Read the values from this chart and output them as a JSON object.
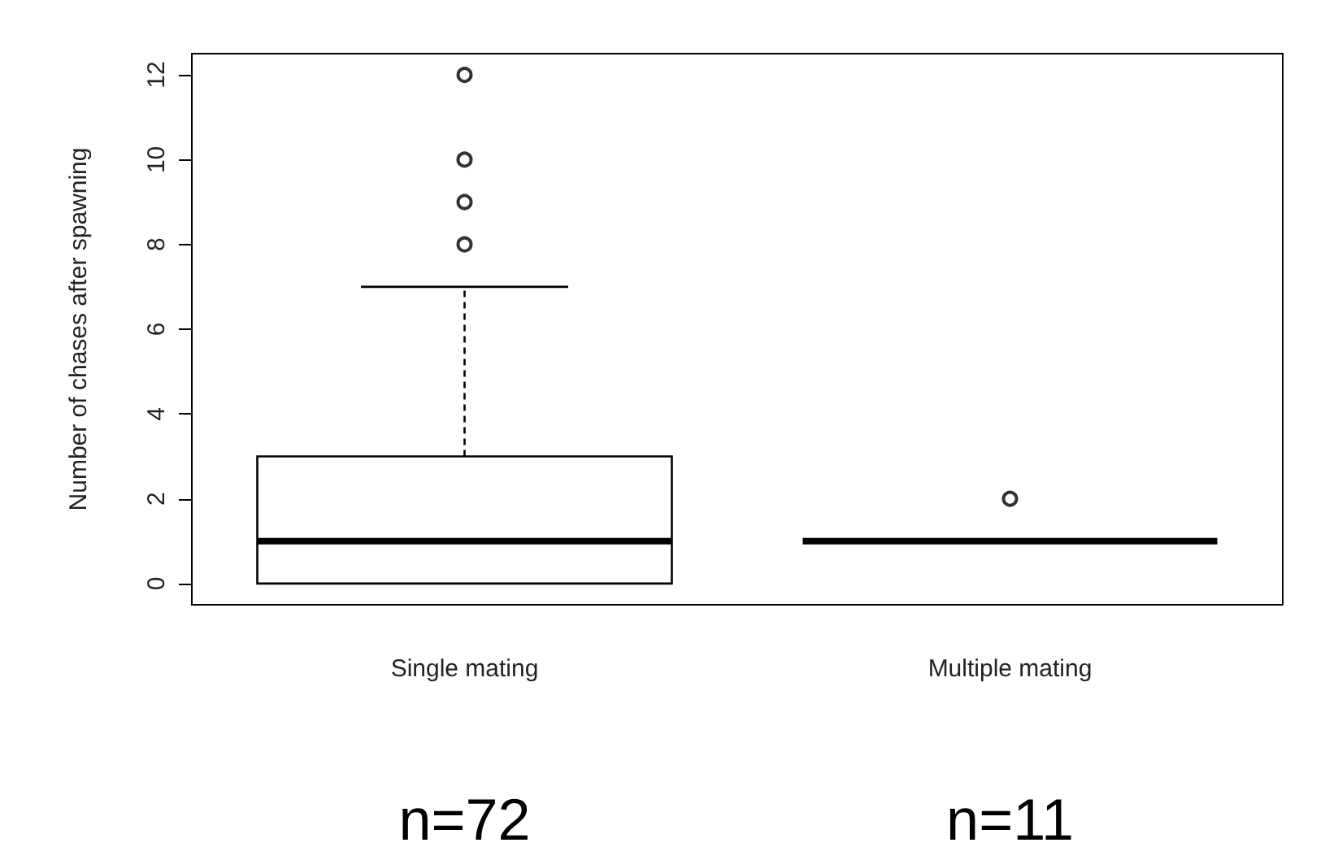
{
  "chart_data": {
    "type": "box",
    "ylabel": "Number of chases after spawning",
    "categories": [
      "Single mating",
      "Multiple mating"
    ],
    "boxes": [
      {
        "low": 0,
        "q1": 0,
        "median": 1,
        "q3": 3,
        "high": 7,
        "outliers": [
          8,
          9,
          10,
          12
        ]
      },
      {
        "low": 1,
        "q1": 1,
        "median": 1,
        "q3": 1,
        "high": 1,
        "outliers": [
          2
        ]
      }
    ],
    "color": "#000000",
    "ylim": [
      -0.5,
      12.5
    ],
    "yticks": [
      0,
      2,
      4,
      6,
      8,
      10,
      12
    ],
    "grid": false,
    "marker": "circle",
    "annotations": [
      "n=72",
      "n=11"
    ]
  }
}
